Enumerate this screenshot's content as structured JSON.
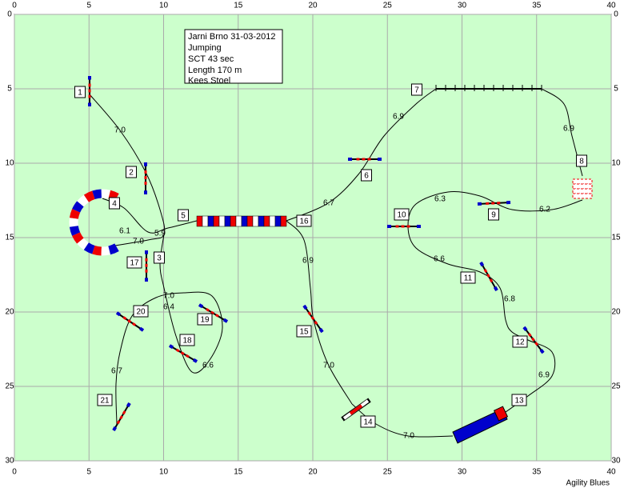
{
  "xticks": [
    0,
    5,
    10,
    15,
    20,
    25,
    30,
    35,
    40
  ],
  "yticks": [
    0,
    5,
    10,
    15,
    20,
    25,
    30
  ],
  "info": [
    "Jarni Brno 31-03-2012",
    "Jumping",
    "SCT 43 sec",
    "Length 170 m",
    "Kees Stoel"
  ],
  "obstacles": [
    "1",
    "2",
    "3",
    "4",
    "5",
    "6",
    "7",
    "8",
    "9",
    "10",
    "11",
    "12",
    "13",
    "14",
    "15",
    "16",
    "17",
    "18",
    "19",
    "20",
    "21"
  ],
  "distances": [
    "7.0",
    "6.1",
    "7.0",
    "5.9",
    "6.7",
    "6.9",
    "6.9",
    "6.3",
    "6.2",
    "6.6",
    "6.8",
    "6.9",
    "7.0",
    "7.0",
    "6.9",
    "7.0",
    "6.4",
    "6.6",
    "6.7"
  ],
  "footer": "Agility Blues"
}
